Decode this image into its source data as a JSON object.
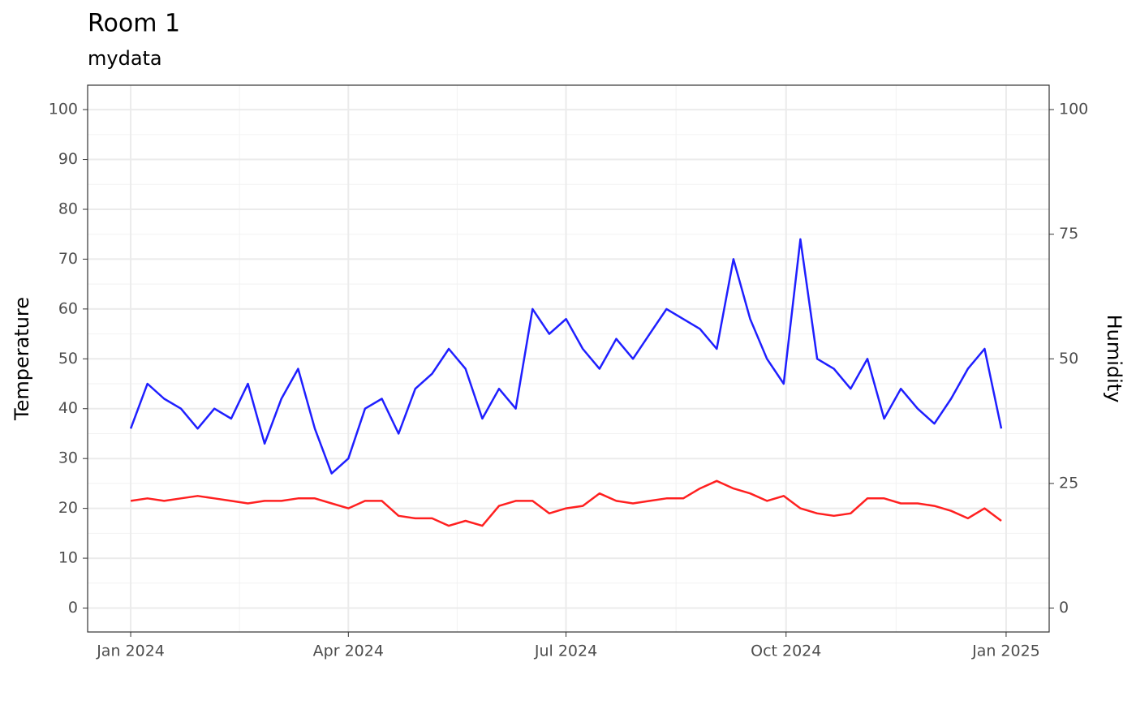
{
  "chart_data": {
    "type": "line",
    "title": "Room 1",
    "subtitle": "mydata",
    "y_label": "Temperature",
    "y2_label": "Humidity",
    "x": [
      "2024-01-01",
      "2024-01-08",
      "2024-01-15",
      "2024-01-22",
      "2024-01-29",
      "2024-02-05",
      "2024-02-12",
      "2024-02-19",
      "2024-02-26",
      "2024-03-04",
      "2024-03-11",
      "2024-03-18",
      "2024-03-25",
      "2024-04-01",
      "2024-04-08",
      "2024-04-15",
      "2024-04-22",
      "2024-04-29",
      "2024-05-06",
      "2024-05-13",
      "2024-05-20",
      "2024-05-27",
      "2024-06-03",
      "2024-06-10",
      "2024-06-17",
      "2024-06-24",
      "2024-07-01",
      "2024-07-08",
      "2024-07-15",
      "2024-07-22",
      "2024-07-29",
      "2024-08-05",
      "2024-08-12",
      "2024-08-19",
      "2024-08-26",
      "2024-09-02",
      "2024-09-09",
      "2024-09-16",
      "2024-09-23",
      "2024-09-30",
      "2024-10-07",
      "2024-10-14",
      "2024-10-21",
      "2024-10-28",
      "2024-11-04",
      "2024-11-11",
      "2024-11-18",
      "2024-11-25",
      "2024-12-02",
      "2024-12-09",
      "2024-12-16",
      "2024-12-23",
      "2024-12-30"
    ],
    "series": [
      {
        "name": "Temperature",
        "color": "#ff2020",
        "values": [
          21.5,
          22,
          21.5,
          22,
          22.5,
          22,
          21.5,
          21,
          21.5,
          21.5,
          22,
          22,
          21,
          20,
          21.5,
          21.5,
          18.5,
          18,
          18,
          16.5,
          17.5,
          16.5,
          20.5,
          21.5,
          21.5,
          19,
          20,
          20.5,
          23,
          21.5,
          21,
          21.5,
          22,
          22,
          24,
          25.5,
          24,
          23,
          21.5,
          22.5,
          20,
          19,
          18.5,
          19,
          22,
          22,
          21,
          21,
          20.5,
          19.5,
          18,
          20,
          17.5
        ]
      },
      {
        "name": "Humidity",
        "color": "#1f1fff",
        "axis": "y2",
        "values": [
          36,
          45,
          42,
          40,
          36,
          40,
          38,
          45,
          33,
          42,
          48,
          36,
          27,
          30,
          40,
          42,
          35,
          44,
          47,
          52,
          48,
          38,
          44,
          40,
          60,
          55,
          58,
          52,
          48,
          54,
          50,
          55,
          60,
          58,
          56,
          52,
          70,
          58,
          50,
          45,
          74,
          50,
          48,
          44,
          50,
          38,
          44,
          40,
          37,
          42,
          48,
          52,
          36
        ]
      }
    ],
    "xlim": [
      "2023-12-14",
      "2025-01-19"
    ],
    "xticks": [
      {
        "value": "2024-01-01",
        "label": "Jan 2024"
      },
      {
        "value": "2024-04-01",
        "label": "Apr 2024"
      },
      {
        "value": "2024-07-01",
        "label": "Jul 2024"
      },
      {
        "value": "2024-10-01",
        "label": "Oct 2024"
      },
      {
        "value": "2025-01-01",
        "label": "Jan 2025"
      }
    ],
    "ylim": [
      -4.8,
      104.9
    ],
    "yticks": [
      0,
      10,
      20,
      30,
      40,
      50,
      60,
      70,
      80,
      90,
      100
    ],
    "y2lim": [
      -4.8,
      104.9
    ],
    "y2ticks": [
      0,
      25,
      50,
      75,
      100
    ],
    "grid": true
  }
}
